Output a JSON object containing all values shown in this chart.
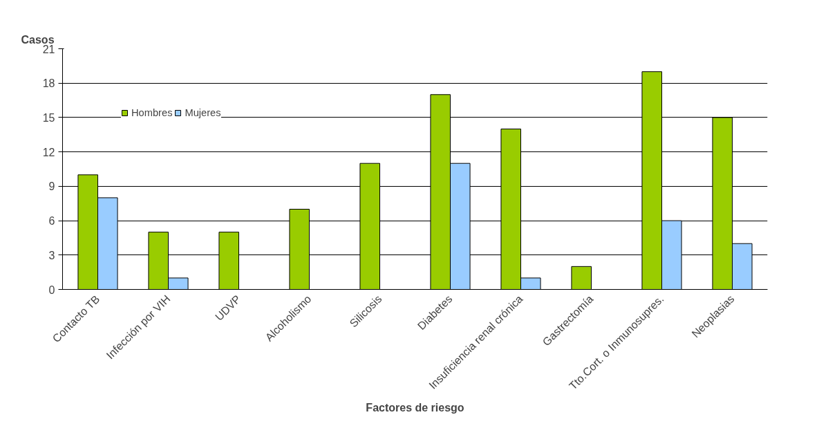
{
  "chart_data": {
    "type": "bar",
    "ylabel": "Casos",
    "xlabel": "Factores de riesgo",
    "categories": [
      "Contacto TB",
      "Infección por VIH",
      "UDVP",
      "Alcoholismo",
      "Silicosis",
      "Diabetes",
      "Insuficiencia renal crónica",
      "Gastrectomía",
      "Tto.Cort. o Inmunosupres.",
      "Neoplasias"
    ],
    "series": [
      {
        "name": "Hombres",
        "color": "#99cc00",
        "values": [
          10,
          5,
          5,
          7,
          11,
          17,
          14,
          2,
          19,
          15
        ]
      },
      {
        "name": "Mujeres",
        "color": "#99ccff",
        "values": [
          8,
          1,
          null,
          null,
          null,
          11,
          1,
          null,
          6,
          4
        ]
      }
    ],
    "ylim": [
      0,
      21
    ],
    "yticks": [
      0,
      3,
      6,
      9,
      12,
      15,
      18,
      21
    ],
    "grid": "y",
    "legend": "top left"
  }
}
